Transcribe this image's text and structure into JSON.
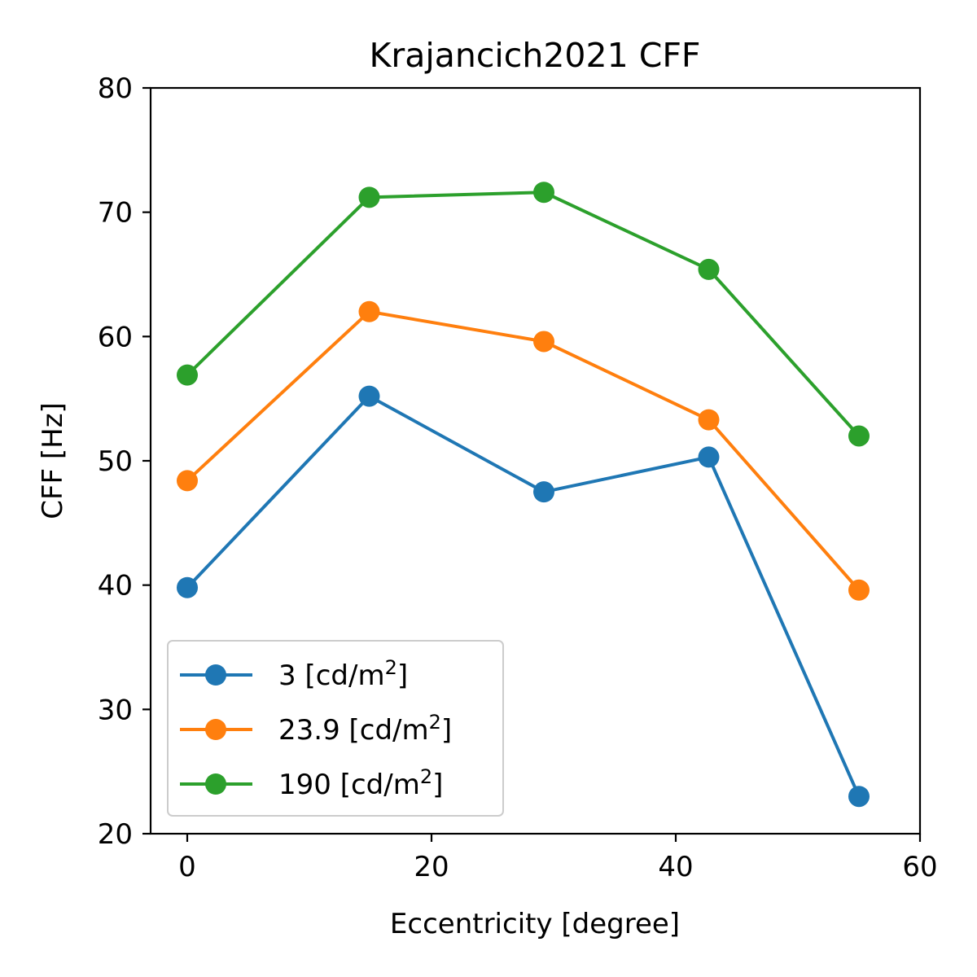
{
  "chart_data": {
    "type": "line",
    "title": "Krajancich2021 CFF",
    "xlabel": "Eccentricity [degree]",
    "ylabel": "CFF [Hz]",
    "xlim": [
      -3,
      60
    ],
    "ylim": [
      20,
      80
    ],
    "xticks": [
      0,
      20,
      40,
      60
    ],
    "yticks": [
      20,
      30,
      40,
      50,
      60,
      70,
      80
    ],
    "grid": false,
    "legend_position": "lower-left",
    "x": [
      0,
      14.9,
      29.2,
      42.7,
      55
    ],
    "series": [
      {
        "name": "3",
        "unit": "[cd/m",
        "unit_sup": "2",
        "unit_end": "]",
        "color": "#1f77b4",
        "values": [
          39.8,
          55.2,
          47.5,
          50.3,
          23
        ]
      },
      {
        "name": "23.9",
        "unit": "[cd/m",
        "unit_sup": "2",
        "unit_end": "]",
        "color": "#ff7f0e",
        "values": [
          48.4,
          62,
          59.6,
          53.3,
          39.6
        ]
      },
      {
        "name": "190",
        "unit": "[cd/m",
        "unit_sup": "2",
        "unit_end": "]",
        "color": "#2ca02c",
        "values": [
          56.9,
          71.2,
          71.6,
          65.4,
          52
        ]
      }
    ]
  }
}
